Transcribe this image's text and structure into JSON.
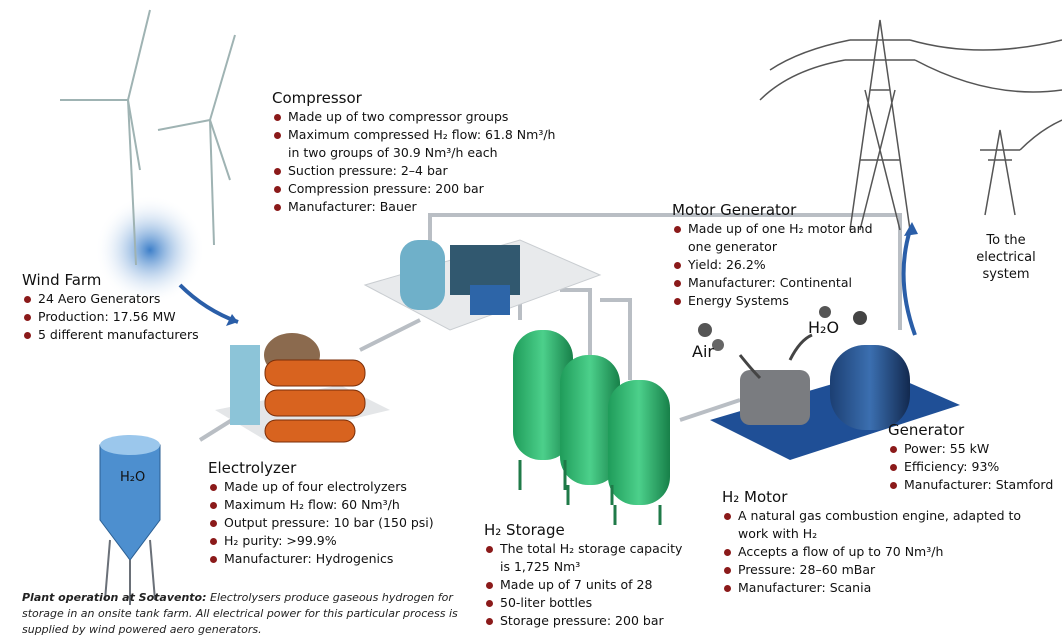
{
  "blocks": {
    "compressor": {
      "title": "Compressor",
      "items": [
        "Made up of two compressor groups",
        "Maximum compressed H₂ flow: 61.8 Nm³/h in two groups of 30.9 Nm³/h each",
        "Suction pressure: 2–4 bar",
        "Compression pressure: 200 bar",
        "Manufacturer: Bauer"
      ]
    },
    "wind_farm": {
      "title": "Wind Farm",
      "items": [
        "24 Aero Generators",
        "Production: 17.56 MW",
        "5 different manufacturers"
      ]
    },
    "motor_generator": {
      "title": "Motor Generator",
      "items": [
        "Made up of one H₂ motor and one generator",
        "Yield: 26.2%",
        "Manufacturer: Continental",
        "Energy Systems"
      ]
    },
    "electrolyzer": {
      "title": "Electrolyzer",
      "items": [
        "Made up of four electrolyzers",
        "Maximum H₂ flow: 60 Nm³/h",
        "Output pressure: 10 bar (150 psi)",
        "H₂ purity: >99.9%",
        "Manufacturer: Hydrogenics"
      ]
    },
    "h2_storage": {
      "title": "H₂ Storage",
      "items": [
        "The total H₂ storage capacity is 1,725 Nm³",
        "Made up of 7 units of 28",
        "50-liter bottles",
        "Storage pressure: 200 bar"
      ]
    },
    "h2_motor": {
      "title": "H₂ Motor",
      "items": [
        "A natural gas combustion engine, adapted to work with H₂",
        "Accepts a flow of up to 70 Nm³/h",
        "Pressure: 28–60 mBar",
        "Manufacturer: Scania"
      ]
    },
    "generator": {
      "title": "Generator",
      "items": [
        "Power: 55 kW",
        "Efficiency: 93%",
        "Manufacturer: Stamford"
      ]
    }
  },
  "labels": {
    "to_grid": "To the electrical system",
    "air": "Air",
    "exhaust": "H₂O",
    "water_tank": "H₂O"
  },
  "caption": {
    "lead": "Plant operation at Sotavento:",
    "text": "Electrolysers produce gaseous hydrogen for storage in an onsite tank farm. All electrical power for this particular process is supplied by wind powered aero generators."
  }
}
